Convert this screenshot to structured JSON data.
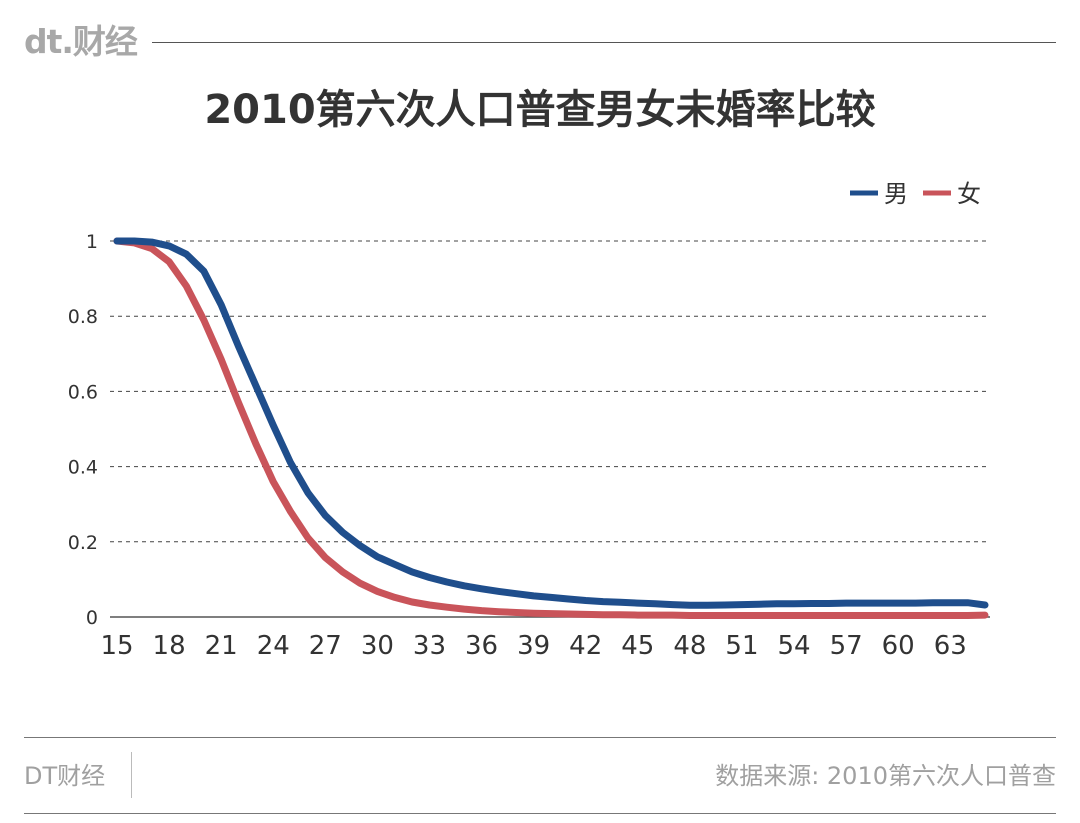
{
  "header": {
    "logo": "dt.财经"
  },
  "footer": {
    "brand": "DT财经",
    "source": "数据来源: 2010第六次人口普查"
  },
  "chart_data": {
    "type": "line",
    "title": "2010第六次人口普查男女未婚率比较",
    "xlabel": "",
    "ylabel": "",
    "xlim": [
      15,
      65
    ],
    "ylim": [
      0,
      1
    ],
    "x_ticks": [
      "15",
      "18",
      "21",
      "24",
      "27",
      "30",
      "33",
      "36",
      "39",
      "42",
      "45",
      "48",
      "51",
      "54",
      "57",
      "60",
      "63"
    ],
    "y_ticks": [
      "0",
      "0.2",
      "0.4",
      "0.6",
      "0.8",
      "1"
    ],
    "grid": "horizontal-dashed",
    "legend_position": "top-right",
    "x": [
      15,
      16,
      17,
      18,
      19,
      20,
      21,
      22,
      23,
      24,
      25,
      26,
      27,
      28,
      29,
      30,
      31,
      32,
      33,
      34,
      35,
      36,
      37,
      38,
      39,
      40,
      41,
      42,
      43,
      44,
      45,
      46,
      47,
      48,
      49,
      50,
      51,
      52,
      53,
      54,
      55,
      56,
      57,
      58,
      59,
      60,
      61,
      62,
      63,
      64,
      65
    ],
    "series": [
      {
        "name": "男",
        "color": "#1f4e8c",
        "values": [
          1.0,
          1.0,
          0.997,
          0.987,
          0.965,
          0.92,
          0.83,
          0.72,
          0.615,
          0.51,
          0.41,
          0.33,
          0.27,
          0.225,
          0.19,
          0.16,
          0.14,
          0.12,
          0.105,
          0.093,
          0.083,
          0.075,
          0.068,
          0.062,
          0.056,
          0.052,
          0.048,
          0.044,
          0.041,
          0.039,
          0.037,
          0.035,
          0.033,
          0.031,
          0.031,
          0.032,
          0.033,
          0.034,
          0.035,
          0.035,
          0.036,
          0.036,
          0.037,
          0.037,
          0.037,
          0.037,
          0.037,
          0.038,
          0.038,
          0.038,
          0.032
        ]
      },
      {
        "name": "女",
        "color": "#c9545a",
        "values": [
          1.0,
          0.995,
          0.98,
          0.945,
          0.88,
          0.79,
          0.685,
          0.57,
          0.46,
          0.36,
          0.28,
          0.21,
          0.158,
          0.12,
          0.09,
          0.068,
          0.052,
          0.04,
          0.032,
          0.026,
          0.021,
          0.017,
          0.014,
          0.012,
          0.01,
          0.009,
          0.008,
          0.007,
          0.006,
          0.006,
          0.005,
          0.005,
          0.005,
          0.004,
          0.004,
          0.004,
          0.004,
          0.004,
          0.004,
          0.004,
          0.004,
          0.004,
          0.004,
          0.004,
          0.004,
          0.004,
          0.004,
          0.004,
          0.004,
          0.004,
          0.005
        ]
      }
    ]
  }
}
